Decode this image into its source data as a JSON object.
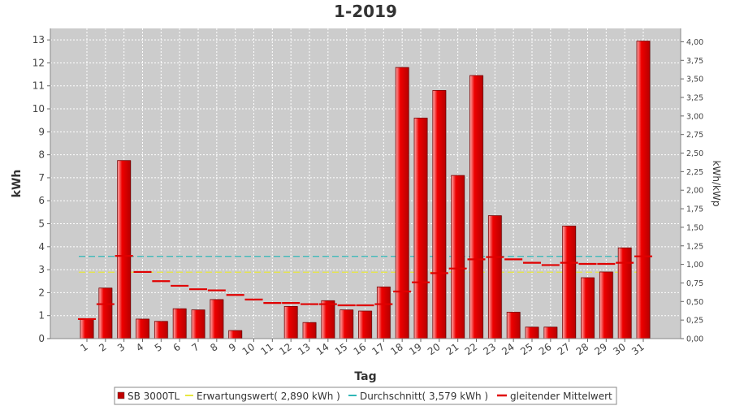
{
  "chart_data": {
    "type": "bar",
    "title": "1-2019",
    "xlabel": "Tag",
    "ylabel": "kWh",
    "y2label": "kWh/kWp",
    "ylim": [
      0,
      13.5
    ],
    "y2lim": [
      0,
      4.18
    ],
    "yticks": [
      "0",
      "1",
      "2",
      "3",
      "4",
      "5",
      "6",
      "7",
      "8",
      "9",
      "10",
      "11",
      "12",
      "13"
    ],
    "y2ticks": [
      "0,00",
      "0,25",
      "0,50",
      "0,75",
      "1,00",
      "1,25",
      "1,50",
      "1,75",
      "2,00",
      "2,25",
      "2,50",
      "2,75",
      "3,00",
      "3,25",
      "3,50",
      "3,75",
      "4,00"
    ],
    "categories": [
      "1",
      "2",
      "3",
      "4",
      "5",
      "6",
      "7",
      "8",
      "9",
      "10",
      "11",
      "12",
      "13",
      "14",
      "15",
      "16",
      "17",
      "18",
      "19",
      "20",
      "21",
      "22",
      "23",
      "24",
      "25",
      "26",
      "27",
      "28",
      "29",
      "30",
      "31"
    ],
    "grid": true,
    "legend_position": "bottom",
    "series": [
      {
        "name": "SB 3000TL",
        "type": "bar",
        "color": "#e00000",
        "values": [
          0.85,
          2.2,
          7.75,
          0.85,
          0.75,
          1.3,
          1.25,
          1.7,
          0.35,
          0,
          0,
          1.4,
          0.7,
          1.65,
          1.25,
          1.2,
          2.25,
          11.8,
          9.6,
          10.8,
          7.1,
          11.45,
          5.35,
          1.15,
          0.5,
          0.5,
          4.9,
          2.65,
          2.9,
          3.95,
          12.95
        ]
      },
      {
        "name": "Erwartungswert( 2,890 kWh )",
        "type": "line",
        "color": "#e8e840",
        "constant": 2.89
      },
      {
        "name": "Durchschnitt( 3,579 kWh )",
        "type": "line",
        "color": "#30b8b8",
        "constant": 3.579
      },
      {
        "name": "gleitender Mittelwert",
        "type": "step",
        "color": "#e00000",
        "values": [
          0.85,
          1.5,
          3.6,
          2.9,
          2.5,
          2.3,
          2.15,
          2.1,
          1.9,
          1.7,
          1.55,
          1.55,
          1.5,
          1.5,
          1.45,
          1.45,
          1.5,
          2.05,
          2.45,
          2.85,
          3.05,
          3.45,
          3.55,
          3.45,
          3.3,
          3.2,
          3.3,
          3.25,
          3.25,
          3.3,
          3.58
        ]
      }
    ]
  }
}
